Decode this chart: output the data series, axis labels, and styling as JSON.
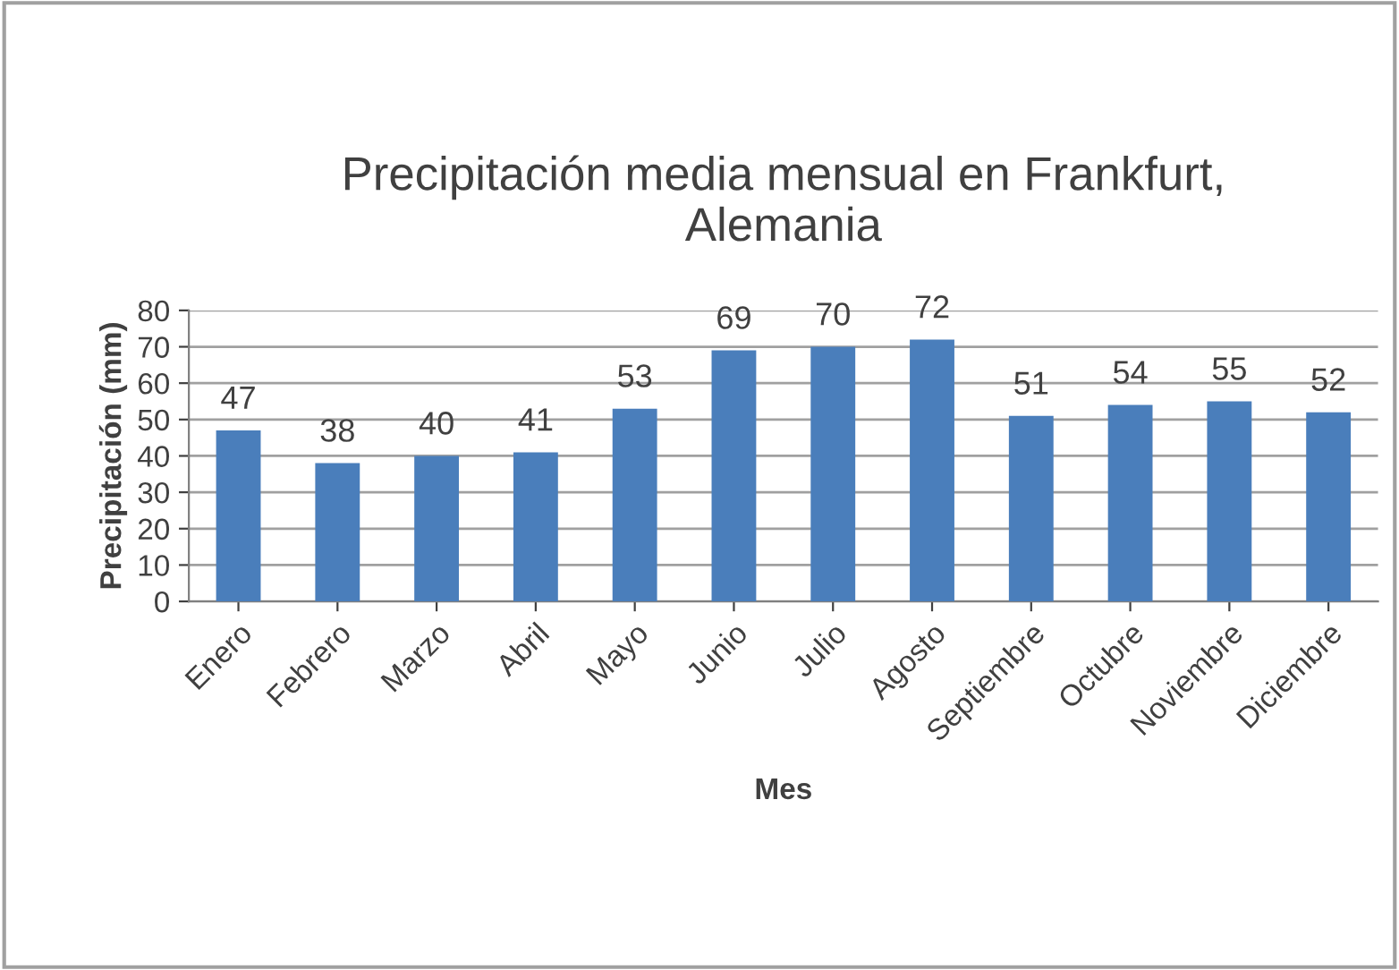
{
  "chart_data": {
    "type": "bar",
    "title": "Precipitación media mensual en Frankfurt,\nAlemania",
    "xlabel": "Mes",
    "ylabel": "Precipitación (mm)",
    "categories": [
      "Enero",
      "Febrero",
      "Marzo",
      "Abril",
      "Mayo",
      "Junio",
      "Julio",
      "Agosto",
      "Septiembre",
      "Octubre",
      "Noviembre",
      "Diciembre"
    ],
    "values": [
      47,
      38,
      40,
      41,
      53,
      69,
      70,
      72,
      51,
      54,
      55,
      52
    ],
    "color": "#4a7ebb",
    "ylim": [
      0,
      80
    ],
    "yticks": [
      0,
      10,
      20,
      30,
      40,
      50,
      60,
      70,
      80
    ],
    "grid": "y",
    "data_labels": true
  }
}
